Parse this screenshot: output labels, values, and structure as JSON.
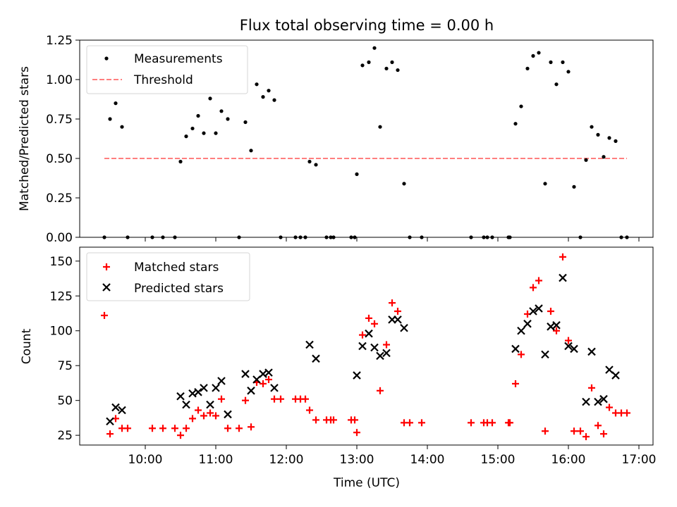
{
  "chart_data": [
    {
      "type": "scatter",
      "title": "Flux total observing time = 0.00 h",
      "xlabel": "",
      "ylabel": "Matched/Predicted stars",
      "xlim": [
        9.07,
        17.2
      ],
      "ylim": [
        0,
        1.25
      ],
      "yticks": [
        0,
        0.25,
        0.5,
        0.75,
        1.0,
        1.25
      ],
      "ytick_labels": [
        "0.00",
        "0.25",
        "0.50",
        "0.75",
        "1.00",
        "1.25"
      ],
      "legend": [
        "Measurements",
        "Threshold"
      ],
      "legend_position": "upper-left",
      "threshold": {
        "name": "Threshold",
        "value": 0.5,
        "x_range": [
          9.42,
          16.83
        ],
        "color": "#ff7f7f"
      },
      "series": [
        {
          "name": "Measurements",
          "marker": "dot",
          "color": "#000000",
          "x": [
            9.42,
            9.5,
            9.58,
            9.67,
            9.75,
            10.1,
            10.25,
            10.42,
            10.5,
            10.58,
            10.67,
            10.75,
            10.83,
            10.92,
            11.0,
            11.08,
            11.17,
            11.33,
            11.42,
            11.5,
            11.58,
            11.67,
            11.75,
            11.83,
            11.92,
            12.13,
            12.2,
            12.27,
            12.33,
            12.42,
            12.57,
            12.63,
            12.67,
            12.92,
            12.97,
            13.0,
            13.08,
            13.17,
            13.25,
            13.33,
            13.42,
            13.5,
            13.58,
            13.67,
            13.75,
            13.92,
            14.62,
            14.8,
            14.85,
            14.92,
            15.15,
            15.17,
            15.25,
            15.33,
            15.42,
            15.5,
            15.58,
            15.67,
            15.75,
            15.83,
            15.92,
            16.0,
            16.08,
            16.17,
            16.25,
            16.33,
            16.42,
            16.5,
            16.58,
            16.67,
            16.75,
            16.83
          ],
          "y": [
            0.0,
            0.75,
            0.85,
            0.7,
            0.0,
            0.0,
            0.0,
            0.0,
            0.48,
            0.64,
            0.69,
            0.77,
            0.66,
            0.88,
            0.66,
            0.8,
            0.75,
            0.0,
            0.73,
            0.55,
            0.97,
            0.89,
            0.93,
            0.87,
            0.0,
            0.0,
            0.0,
            0.0,
            0.48,
            0.46,
            0.0,
            0.0,
            0.0,
            0.0,
            0.0,
            0.4,
            1.09,
            1.11,
            1.2,
            0.7,
            1.07,
            1.11,
            1.06,
            0.34,
            0.0,
            0.0,
            0.0,
            0.0,
            0.0,
            0.0,
            0.0,
            0.0,
            0.72,
            0.83,
            1.07,
            1.15,
            1.17,
            0.34,
            1.11,
            0.97,
            1.11,
            1.05,
            0.32,
            0.0,
            0.49,
            0.7,
            0.65,
            0.51,
            0.63,
            0.61,
            0.0,
            0.0
          ]
        }
      ]
    },
    {
      "type": "scatter",
      "title": "",
      "xlabel": "Time (UTC)",
      "ylabel": "Count",
      "xlim": [
        9.07,
        17.2
      ],
      "ylim": [
        18,
        160
      ],
      "yticks": [
        25,
        50,
        75,
        100,
        125,
        150
      ],
      "ytick_labels": [
        "25",
        "50",
        "75",
        "100",
        "125",
        "150"
      ],
      "xticks": [
        10,
        11,
        12,
        13,
        14,
        15,
        16,
        17
      ],
      "xtick_labels": [
        "10:00",
        "11:00",
        "12:00",
        "13:00",
        "14:00",
        "15:00",
        "16:00",
        "17:00"
      ],
      "legend": [
        "Matched stars",
        "Predicted stars"
      ],
      "legend_position": "upper-left",
      "series": [
        {
          "name": "Matched stars",
          "marker": "plus",
          "color": "#ff0000",
          "x": [
            9.42,
            9.5,
            9.58,
            9.67,
            9.75,
            10.1,
            10.25,
            10.42,
            10.5,
            10.58,
            10.67,
            10.75,
            10.83,
            10.92,
            11.0,
            11.08,
            11.17,
            11.33,
            11.42,
            11.5,
            11.58,
            11.67,
            11.75,
            11.83,
            11.92,
            12.13,
            12.2,
            12.27,
            12.33,
            12.42,
            12.57,
            12.63,
            12.67,
            12.92,
            12.97,
            13.0,
            13.08,
            13.17,
            13.25,
            13.33,
            13.42,
            13.5,
            13.58,
            13.67,
            13.75,
            13.92,
            14.62,
            14.8,
            14.85,
            14.92,
            15.15,
            15.17,
            15.25,
            15.33,
            15.42,
            15.5,
            15.58,
            15.67,
            15.75,
            15.83,
            15.92,
            16.0,
            16.08,
            16.17,
            16.25,
            16.33,
            16.42,
            16.5,
            16.58,
            16.67,
            16.75,
            16.83
          ],
          "y": [
            111,
            26,
            37,
            30,
            30,
            30,
            30,
            30,
            25,
            30,
            37,
            43,
            39,
            41,
            39,
            51,
            30,
            30,
            50,
            31,
            63,
            62,
            65,
            51,
            51,
            51,
            51,
            51,
            43,
            36,
            36,
            36,
            36,
            36,
            36,
            27,
            97,
            109,
            105,
            57,
            90,
            120,
            114,
            34,
            34,
            34,
            34,
            34,
            34,
            34,
            34,
            34,
            62,
            83,
            112,
            131,
            136,
            28,
            114,
            100,
            153,
            93,
            28,
            28,
            24,
            59,
            32,
            26,
            45,
            41,
            41,
            41
          ]
        },
        {
          "name": "Predicted stars",
          "marker": "x",
          "color": "#000000",
          "x": [
            9.5,
            9.58,
            9.67,
            10.5,
            10.58,
            10.67,
            10.75,
            10.83,
            10.92,
            11.0,
            11.08,
            11.17,
            11.42,
            11.5,
            11.58,
            11.67,
            11.75,
            11.83,
            12.33,
            12.42,
            13.0,
            13.08,
            13.17,
            13.25,
            13.33,
            13.42,
            13.5,
            13.58,
            13.67,
            15.25,
            15.33,
            15.42,
            15.5,
            15.58,
            15.67,
            15.75,
            15.83,
            15.92,
            16.0,
            16.08,
            16.25,
            16.33,
            16.42,
            16.5,
            16.58,
            16.67
          ],
          "y": [
            35,
            45,
            43,
            53,
            47,
            55,
            56,
            59,
            47,
            59,
            64,
            40,
            69,
            57,
            65,
            69,
            70,
            59,
            90,
            80,
            68,
            89,
            98,
            88,
            82,
            84,
            108,
            108,
            102,
            87,
            100,
            105,
            114,
            116,
            83,
            103,
            104,
            138,
            89,
            87,
            49,
            85,
            49,
            51,
            72,
            68
          ]
        }
      ]
    }
  ]
}
